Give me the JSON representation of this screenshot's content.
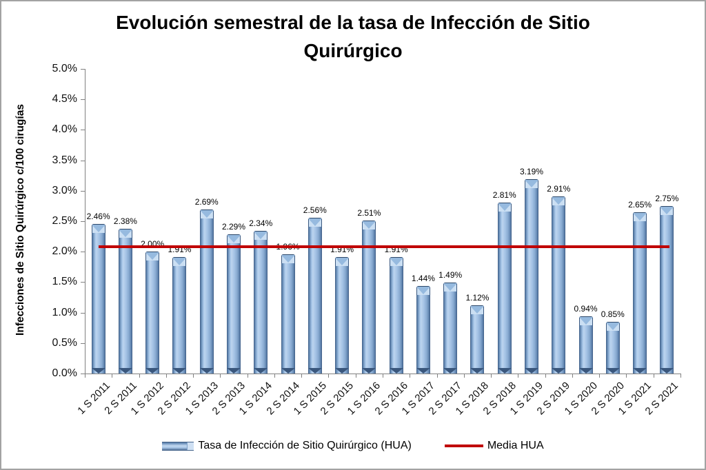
{
  "frame": {
    "background": "#ffffff",
    "border_color": "#a3a3a3"
  },
  "chart_data": {
    "type": "bar",
    "title": "Evolución semestral de la tasa de Infección de Sitio Quirúrgico",
    "xlabel": "",
    "ylabel": "Infecciones de Sitio Quirúrgico c/100 cirugías",
    "ylim": [
      0,
      5.0
    ],
    "y_tick_step": 0.5,
    "y_ticks": [
      "0.0%",
      "0.5%",
      "1.0%",
      "1.5%",
      "2.0%",
      "2.5%",
      "3.0%",
      "3.5%",
      "4.0%",
      "4.5%",
      "5.0%"
    ],
    "grid": false,
    "legend_position": "bottom",
    "categories": [
      "1 S 2011",
      "2 S 2011",
      "1 S 2012",
      "2 S 2012",
      "1 S 2013",
      "2 S 2013",
      "1 S 2014",
      "2 S 2014",
      "1 S 2015",
      "2 S 2015",
      "1 S 2016",
      "2 S 2016",
      "1 S 2017",
      "2 S 2017",
      "1 S 2018",
      "2 S 2018",
      "1 S 2019",
      "2 S 2019",
      "1 S 2020",
      "2 S 2020",
      "1 S 2021",
      "2 S 2021"
    ],
    "series": [
      {
        "name": "Tasa de Infección de Sitio Quirúrgico  (HUA)",
        "type": "bar",
        "color": "#A3C2E4",
        "edge_color": "#3A587F",
        "values": [
          2.46,
          2.38,
          2.0,
          1.91,
          2.69,
          2.29,
          2.34,
          1.96,
          2.56,
          1.91,
          2.51,
          1.91,
          1.44,
          1.49,
          1.12,
          2.81,
          3.19,
          2.91,
          0.94,
          0.85,
          2.65,
          2.75
        ],
        "labels": [
          "2.46%",
          "2.38%",
          "2.00%",
          "1.91%",
          "2.69%",
          "2.29%",
          "2.34%",
          "1.96%",
          "2.56%",
          "1.91%",
          "2.51%",
          "1.91%",
          "1.44%",
          "1.49%",
          "1.12%",
          "2.81%",
          "3.19%",
          "2.91%",
          "0.94%",
          "0.85%",
          "2.65%",
          "2.75%"
        ]
      },
      {
        "name": "Media HUA",
        "type": "line",
        "color": "#C00000",
        "value": 2.08
      }
    ]
  }
}
